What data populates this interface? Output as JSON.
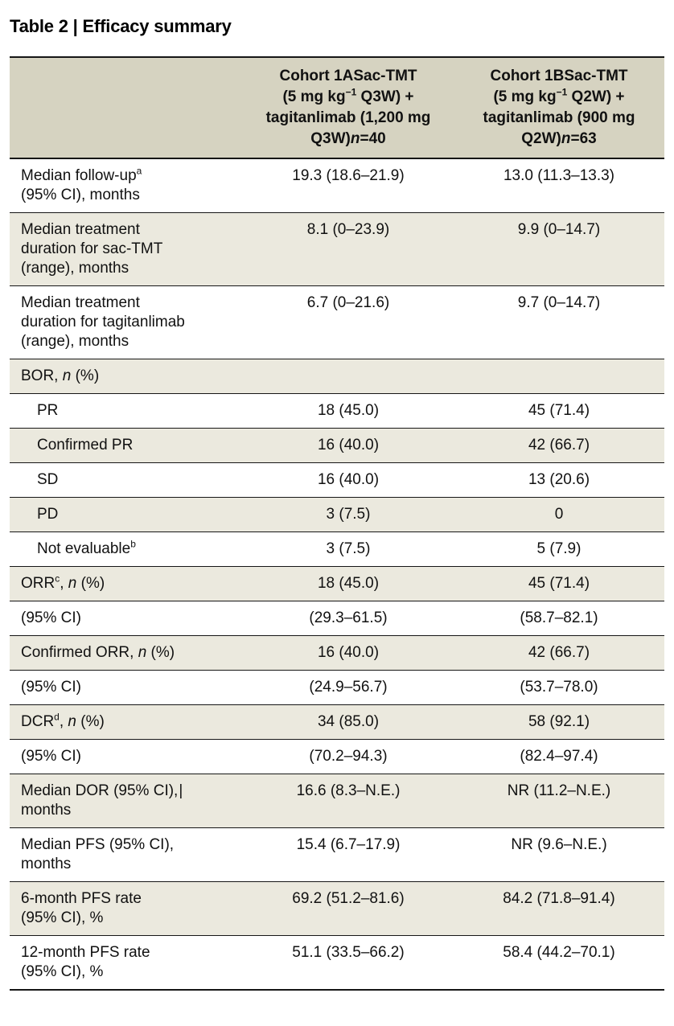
{
  "title": "Table 2 | Efficacy summary",
  "colors": {
    "header_bg": "#d6d3c1",
    "row_alt_bg": "#ebe9de",
    "row_bg": "#ffffff",
    "rule": "#161616",
    "text": "#111111"
  },
  "header": {
    "columns": [
      {
        "name": "Cohort 1A sac-TMT + tagitanlimab",
        "segments": [
          [
            "t",
            "Cohort 1ASac-TMT"
          ],
          [
            "br"
          ],
          [
            "t",
            "(5 mg kg"
          ],
          [
            "sup",
            "−1"
          ],
          [
            "t",
            " Q3W) +"
          ],
          [
            "br"
          ],
          [
            "t",
            "tagitanlimab (1,200 mg"
          ],
          [
            "br"
          ],
          [
            "t",
            "Q3W)"
          ],
          [
            "i",
            "n"
          ],
          [
            "t",
            "=40"
          ]
        ]
      },
      {
        "name": "Cohort 1B sac-TMT + tagitanlimab",
        "segments": [
          [
            "t",
            "Cohort 1BSac-TMT"
          ],
          [
            "br"
          ],
          [
            "t",
            "(5 mg kg"
          ],
          [
            "sup",
            "−1"
          ],
          [
            "t",
            " Q2W) +"
          ],
          [
            "br"
          ],
          [
            "t",
            "tagitanlimab (900 mg"
          ],
          [
            "br"
          ],
          [
            "t",
            "Q2W)"
          ],
          [
            "i",
            "n"
          ],
          [
            "t",
            "=63"
          ]
        ]
      }
    ]
  },
  "rows": [
    {
      "label": [
        [
          "t",
          "Median follow-up"
        ],
        [
          "sup",
          "a"
        ],
        [
          "br"
        ],
        [
          "t",
          "(95% CI), months"
        ]
      ],
      "a": "19.3 (18.6–21.9)",
      "b": "13.0 (11.3–13.3)",
      "indent": false
    },
    {
      "label": [
        [
          "t",
          "Median treatment"
        ],
        [
          "br"
        ],
        [
          "t",
          "duration for sac-TMT"
        ],
        [
          "br"
        ],
        [
          "t",
          "(range), months"
        ]
      ],
      "a": "8.1 (0–23.9)",
      "b": "9.9 (0–14.7)",
      "indent": false
    },
    {
      "label": [
        [
          "t",
          "Median treatment"
        ],
        [
          "br"
        ],
        [
          "t",
          "duration for tagitanlimab"
        ],
        [
          "br"
        ],
        [
          "t",
          "(range), months"
        ]
      ],
      "a": "6.7 (0–21.6)",
      "b": "9.7 (0–14.7)",
      "indent": false
    },
    {
      "label": [
        [
          "t",
          "BOR, "
        ],
        [
          "i",
          "n"
        ],
        [
          "t",
          " (%)"
        ]
      ],
      "a": "",
      "b": "",
      "indent": false
    },
    {
      "label": [
        [
          "t",
          "PR"
        ]
      ],
      "a": "18 (45.0)",
      "b": "45 (71.4)",
      "indent": true
    },
    {
      "label": [
        [
          "t",
          "Confirmed PR"
        ]
      ],
      "a": "16 (40.0)",
      "b": "42 (66.7)",
      "indent": true
    },
    {
      "label": [
        [
          "t",
          "SD"
        ]
      ],
      "a": "16 (40.0)",
      "b": "13 (20.6)",
      "indent": true
    },
    {
      "label": [
        [
          "t",
          "PD"
        ]
      ],
      "a": "3 (7.5)",
      "b": "0",
      "indent": true
    },
    {
      "label": [
        [
          "t",
          "Not evaluable"
        ],
        [
          "sup",
          "b"
        ]
      ],
      "a": "3 (7.5)",
      "b": "5 (7.9)",
      "indent": true
    },
    {
      "label": [
        [
          "t",
          "ORR"
        ],
        [
          "sup",
          "c"
        ],
        [
          "t",
          ", "
        ],
        [
          "i",
          "n"
        ],
        [
          "t",
          " (%)"
        ]
      ],
      "a": "18 (45.0)",
      "b": "45 (71.4)",
      "indent": false
    },
    {
      "label": [
        [
          "t",
          "(95% CI)"
        ]
      ],
      "a": "(29.3–61.5)",
      "b": "(58.7–82.1)",
      "indent": false
    },
    {
      "label": [
        [
          "t",
          "Confirmed ORR, "
        ],
        [
          "i",
          "n"
        ],
        [
          "t",
          " (%)"
        ]
      ],
      "a": "16 (40.0)",
      "b": "42 (66.7)",
      "indent": false
    },
    {
      "label": [
        [
          "t",
          "(95% CI)"
        ]
      ],
      "a": "(24.9–56.7)",
      "b": "(53.7–78.0)",
      "indent": false
    },
    {
      "label": [
        [
          "t",
          "DCR"
        ],
        [
          "sup",
          "d"
        ],
        [
          "t",
          ", "
        ],
        [
          "i",
          "n"
        ],
        [
          "t",
          " (%)"
        ]
      ],
      "a": "34 (85.0)",
      "b": "58 (92.1)",
      "indent": false
    },
    {
      "label": [
        [
          "t",
          "(95% CI)"
        ]
      ],
      "a": "(70.2–94.3)",
      "b": "(82.4–97.4)",
      "indent": false
    },
    {
      "label": [
        [
          "t",
          "Median DOR (95% CI),"
        ],
        [
          "caret",
          "|"
        ],
        [
          "br"
        ],
        [
          "t",
          "months"
        ]
      ],
      "a": "16.6 (8.3–N.E.)",
      "b": "NR (11.2–N.E.)",
      "indent": false
    },
    {
      "label": [
        [
          "t",
          "Median PFS (95% CI),"
        ],
        [
          "br"
        ],
        [
          "t",
          "months"
        ]
      ],
      "a": "15.4 (6.7–17.9)",
      "b": "NR (9.6–N.E.)",
      "indent": false
    },
    {
      "label": [
        [
          "t",
          "6-month PFS rate"
        ],
        [
          "br"
        ],
        [
          "t",
          "(95% CI), %"
        ]
      ],
      "a": "69.2 (51.2–81.6)",
      "b": "84.2 (71.8–91.4)",
      "indent": false
    },
    {
      "label": [
        [
          "t",
          "12-month PFS rate"
        ],
        [
          "br"
        ],
        [
          "t",
          "(95% CI), %"
        ]
      ],
      "a": "51.1 (33.5–66.2)",
      "b": "58.4 (44.2–70.1)",
      "indent": false
    }
  ]
}
